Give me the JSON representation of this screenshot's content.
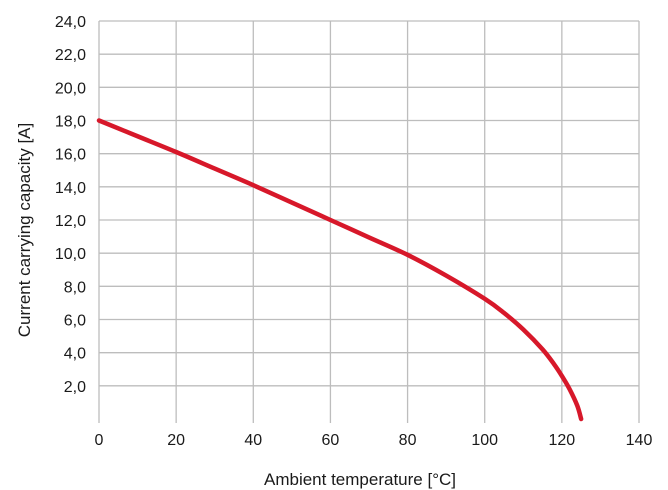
{
  "chart_data": {
    "type": "line",
    "title": "",
    "xlabel": "Ambient temperature [°C]",
    "ylabel": "Current carrying capacity [A]",
    "xlim": [
      0,
      140
    ],
    "ylim": [
      0,
      24
    ],
    "x_ticks": [
      "0",
      "20",
      "40",
      "60",
      "80",
      "100",
      "120",
      "140"
    ],
    "y_ticks": [
      "2,0",
      "4,0",
      "6,0",
      "8,0",
      "10,0",
      "12,0",
      "14,0",
      "16,0",
      "18,0",
      "20,0",
      "22,0",
      "24,0"
    ],
    "grid": true,
    "series": [
      {
        "color": "#d7182a",
        "x": [
          0,
          10,
          20,
          30,
          40,
          50,
          60,
          70,
          80,
          90,
          100,
          105,
          110,
          115,
          118,
          120,
          122,
          124,
          125
        ],
        "y": [
          18.0,
          17.05,
          16.1,
          15.1,
          14.1,
          13.05,
          12.0,
          10.95,
          9.9,
          8.65,
          7.25,
          6.4,
          5.4,
          4.2,
          3.3,
          2.6,
          1.8,
          0.8,
          0.0
        ]
      }
    ]
  }
}
